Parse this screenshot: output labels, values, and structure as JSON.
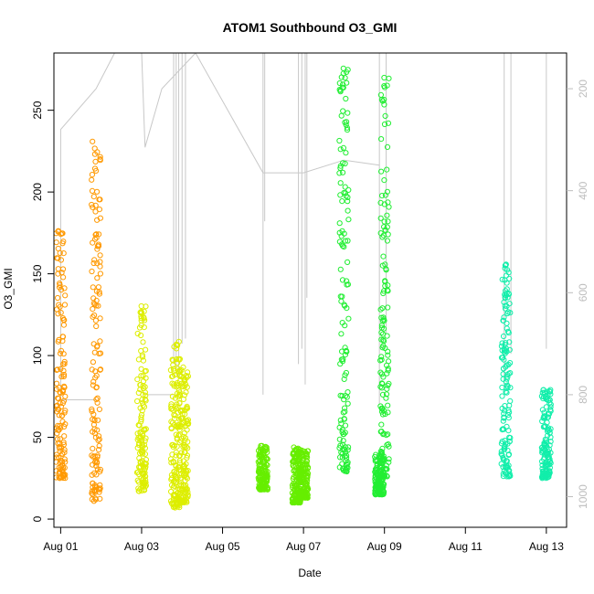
{
  "chart_data": {
    "type": "scatter",
    "title": "ATOM1 Southbound O3_GMI",
    "xlabel": "Date",
    "ylabel": "O3_GMI",
    "xlim": [
      "2016-07-31T20:00",
      "2016-08-13T12:00"
    ],
    "ylim": [
      -5,
      285
    ],
    "x_ticks": [
      "2016-08-01",
      "2016-08-03",
      "2016-08-05",
      "2016-08-07",
      "2016-08-09",
      "2016-08-11",
      "2016-08-13"
    ],
    "x_tick_labels": [
      "Aug 01",
      "Aug 03",
      "Aug 05",
      "Aug 07",
      "Aug 09",
      "Aug 11",
      "Aug 13"
    ],
    "y_ticks": [
      0,
      50,
      100,
      150,
      200,
      250
    ],
    "y_tick_labels": [
      "0",
      "50",
      "100",
      "150",
      "200",
      "250"
    ],
    "right_axis": {
      "label": "",
      "color": "#bdbdbd",
      "ticks": [
        200,
        400,
        600,
        800,
        1000
      ],
      "tick_labels": [
        "200",
        "400",
        "600",
        "800",
        "1000"
      ],
      "lim": [
        1060,
        130
      ],
      "reversed": true
    },
    "grid": false,
    "legend": "none",
    "series": [
      {
        "color": "#ff9900",
        "points": [
          {
            "x": "2016-08-01T00:00",
            "y_min": 25,
            "y_max": 181
          },
          {
            "x": "2016-08-01T21:00",
            "y_min": 10,
            "y_max": 232
          }
        ]
      },
      {
        "color": "#ddee00",
        "points": [
          {
            "x": "2016-08-03T00:00",
            "y_min": 17,
            "y_max": 133
          },
          {
            "x": "2016-08-03T20:00",
            "y_min": 7,
            "y_max": 109
          },
          {
            "x": "2016-08-04T01:00",
            "y_min": 10,
            "y_max": 95
          }
        ]
      },
      {
        "color": "#66ee00",
        "points": [
          {
            "x": "2016-08-06T00:00",
            "y_min": 18,
            "y_max": 45
          },
          {
            "x": "2016-08-06T20:00",
            "y_min": 10,
            "y_max": 44
          },
          {
            "x": "2016-08-07T00:00",
            "y_min": 13,
            "y_max": 42
          }
        ]
      },
      {
        "color": "#22ee33",
        "points": [
          {
            "x": "2016-08-08T00:00",
            "y_min": 29,
            "y_max": 276
          },
          {
            "x": "2016-08-08T21:00",
            "y_min": 15,
            "y_max": 40
          },
          {
            "x": "2016-08-09T00:00",
            "y_min": 26,
            "y_max": 270
          }
        ]
      },
      {
        "color": "#11eeaa",
        "points": [
          {
            "x": "2016-08-12T00:00",
            "y_min": 26,
            "y_max": 156
          },
          {
            "x": "2016-08-13T00:00",
            "y_min": 25,
            "y_max": 81
          }
        ]
      }
    ],
    "pressure_profile": {
      "color": "#c8c8c8",
      "description_points": [
        [
          "2016-08-01T00:00",
          810
        ],
        [
          "2016-08-01T00:00",
          280
        ],
        [
          "2016-08-01T21:00",
          200
        ],
        [
          "2016-08-02T08:00",
          130
        ],
        [
          "2016-08-03T00:00",
          130
        ],
        [
          "2016-08-03T02:00",
          315
        ],
        [
          "2016-08-03T12:00",
          200
        ],
        [
          "2016-08-04T08:00",
          130
        ],
        [
          "2016-08-06T00:00",
          365
        ],
        [
          "2016-08-07T00:00",
          365
        ],
        [
          "2016-08-08T00:00",
          340
        ],
        [
          "2016-08-08T21:00",
          350
        ]
      ]
    }
  }
}
